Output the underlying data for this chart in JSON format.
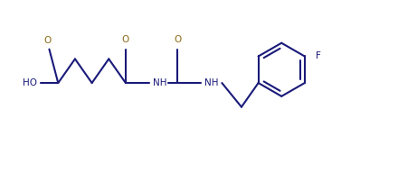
{
  "background_color": "#ffffff",
  "line_color": "#1a1a7a",
  "text_color": "#1a1a7a",
  "carbonyl_color": "#8B6914",
  "bond_lw": 1.5,
  "figsize": [
    4.4,
    1.92
  ],
  "dpi": 100,
  "font_size": 7.5,
  "xlim": [
    0,
    440
  ],
  "ylim": [
    0,
    192
  ]
}
